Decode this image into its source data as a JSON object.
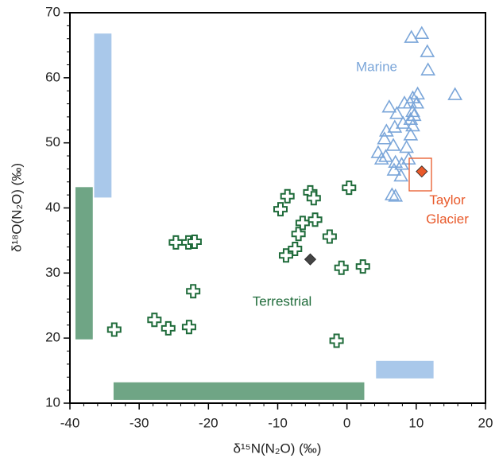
{
  "chart_data": {
    "type": "scatter",
    "x_label": "δ¹⁵N(N₂O) (‰)",
    "y_label": "δ¹⁸O(N₂O) (‰)",
    "xlim": [
      -40,
      20
    ],
    "ylim": [
      10,
      70
    ],
    "xticks": [
      -40,
      -30,
      -20,
      -10,
      0,
      10,
      20
    ],
    "yticks": [
      10,
      20,
      30,
      40,
      50,
      60,
      70
    ],
    "ranges": [
      {
        "color": "#a9c8ea",
        "x": [
          -36.5,
          -34
        ],
        "y": [
          41.6,
          66.8
        ]
      },
      {
        "color": "#a9c8ea",
        "x": [
          4.2,
          12.5
        ],
        "y": [
          13.8,
          16.5
        ]
      },
      {
        "color": "#6fa585",
        "x": [
          -39.2,
          -36.7
        ],
        "y": [
          19.8,
          43.2
        ]
      },
      {
        "color": "#6fa585",
        "x": [
          -33.7,
          2.5
        ],
        "y": [
          10.5,
          13.2
        ]
      }
    ],
    "series": [
      {
        "marker": "triangle",
        "color": "#7ba6d9",
        "x": [
          9.3,
          10.8,
          11.6,
          11.7,
          15.6,
          9.5,
          10.2,
          9.1,
          9.5,
          10.1,
          8.3,
          7.2,
          6.1,
          9.2,
          8.1,
          6.9,
          5.7,
          9.5,
          5.4,
          6.7,
          8.6,
          4.5,
          5.6,
          7.0,
          9.2,
          7.9,
          6.8,
          7.8,
          6.5,
          7.0,
          8.9,
          9.7,
          5.0
        ],
        "y": [
          66.2,
          66.8,
          64.0,
          61.2,
          57.4,
          56.9,
          57.5,
          56.1,
          54.8,
          56.1,
          56.1,
          54.5,
          55.5,
          53.6,
          53.0,
          52.4,
          51.8,
          52.6,
          50.6,
          49.6,
          49.3,
          48.5,
          47.9,
          47.0,
          51.2,
          46.7,
          45.8,
          44.9,
          42.0,
          41.8,
          47.5,
          54.2,
          47.5
        ]
      },
      {
        "marker": "cross",
        "color": "#1f6b3a",
        "x": [
          -33.6,
          -27.8,
          -25.8,
          -22.8,
          -24.7,
          -22.9,
          -22.0,
          -22.2,
          -8.8,
          -7.5,
          -7.0,
          -6.4,
          -8.6,
          -9.6,
          -5.3,
          -4.8,
          -4.6,
          -2.5,
          0.3,
          -0.8,
          2.3,
          -1.5
        ],
        "y": [
          21.3,
          22.8,
          21.5,
          21.7,
          34.7,
          34.7,
          34.8,
          27.2,
          32.7,
          33.7,
          36.0,
          37.7,
          41.8,
          39.8,
          42.4,
          41.5,
          38.2,
          35.6,
          43.1,
          30.8,
          31.0,
          19.6
        ]
      },
      {
        "marker": "diamond",
        "color": "#444444",
        "x": [
          -5.3
        ],
        "y": [
          32.1
        ]
      },
      {
        "marker": "diamond",
        "color": "#e8592a",
        "x": [
          10.8
        ],
        "y": [
          45.6
        ]
      }
    ],
    "annotations": [
      {
        "text": "Marine",
        "color": "#7ba6d9"
      },
      {
        "text": "Terrestrial",
        "color": "#1f6b3a"
      },
      {
        "text": "Taylor Glacier",
        "color": "#e8592a"
      }
    ]
  }
}
